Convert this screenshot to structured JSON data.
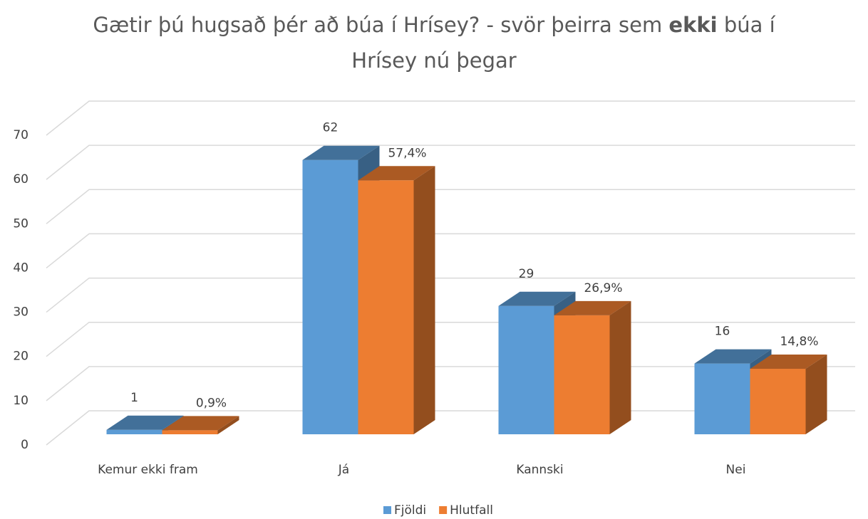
{
  "chart_data": {
    "type": "bar3d",
    "title": {
      "before": "Gætir þú hugsað þér að búa í Hrísey? - svör þeirra sem ",
      "bold": "ekki",
      "after": " búa í Hrísey nú þegar"
    },
    "categories": [
      "Kemur ekki fram",
      "Já",
      "Kannski",
      "Nei"
    ],
    "series": [
      {
        "name": "Fjöldi",
        "color": "#5b9bd5",
        "values": [
          1,
          62,
          29,
          16
        ]
      },
      {
        "name": "Hlutfall",
        "color": "#ed7d31",
        "values": [
          0.9,
          57.4,
          26.9,
          14.8
        ],
        "value_labels": [
          "0,9%",
          "57,4%",
          "26,9%",
          "14,8%"
        ]
      }
    ],
    "ylim": [
      0,
      70
    ],
    "yticks": [
      0,
      10,
      20,
      30,
      40,
      50,
      60,
      70
    ],
    "grid": true,
    "legend": "bottom"
  }
}
